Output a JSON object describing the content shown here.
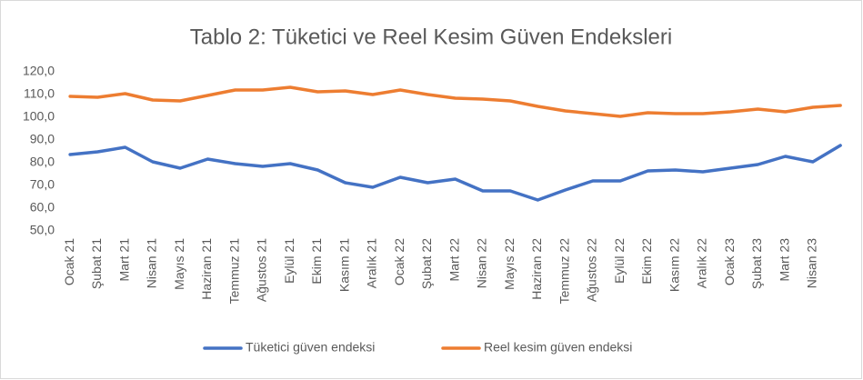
{
  "chart_data": {
    "type": "line",
    "title": "Tablo 2: Tüketici ve Reel Kesim Güven Endeksleri",
    "categories": [
      "Ocak 21",
      "Şubat 21",
      "Mart 21",
      "Nisan 21",
      "Mayıs 21",
      "Haziran 21",
      "Temmuz 21",
      "Ağustos 21",
      "Eylül 21",
      "Ekim 21",
      "Kasım 21",
      "Aralık 21",
      "Ocak 22",
      "Şubat 22",
      "Mart 22",
      "Nisan 22",
      "Mayıs 22",
      "Haziran 22",
      "Temmuz 22",
      "Ağustos 22",
      "Eylül 22",
      "Ekim 22",
      "Kasım 22",
      "Aralık 22",
      "Ocak 23",
      "Şubat 23",
      "Mart 23",
      "Nisan 23",
      null
    ],
    "series": [
      {
        "name": "Tüketici güven endeksi",
        "color": "#4472c4",
        "values": [
          83.6,
          84.8,
          86.8,
          80.4,
          77.6,
          81.6,
          79.6,
          78.4,
          79.6,
          76.8,
          71.2,
          69.2,
          73.6,
          71.2,
          72.8,
          67.6,
          67.6,
          63.6,
          68,
          72,
          72,
          76.4,
          76.8,
          76,
          77.6,
          79.2,
          82.8,
          80.4,
          87.6
        ]
      },
      {
        "name": "Reel kesim güven endeksi",
        "color": "#ed7d31",
        "values": [
          109.2,
          108.8,
          110.4,
          107.6,
          107.2,
          109.6,
          112,
          112,
          113.2,
          111.2,
          111.6,
          110,
          112,
          110,
          108.4,
          108,
          107.2,
          104.8,
          102.8,
          101.6,
          100.4,
          102,
          101.6,
          101.6,
          102.4,
          103.6,
          102.4,
          104.4,
          105.2
        ]
      }
    ],
    "ylim": [
      50,
      120
    ],
    "yticks": [
      {
        "value": 50,
        "label": "50,0"
      },
      {
        "value": 60,
        "label": "60,0"
      },
      {
        "value": 70,
        "label": "70,0"
      },
      {
        "value": 80,
        "label": "80,0"
      },
      {
        "value": 90,
        "label": "90,0"
      },
      {
        "value": 100,
        "label": "100,0"
      },
      {
        "value": 110,
        "label": "110,0"
      },
      {
        "value": 120,
        "label": "120,0"
      }
    ],
    "grid": false,
    "legend": "bottom"
  }
}
